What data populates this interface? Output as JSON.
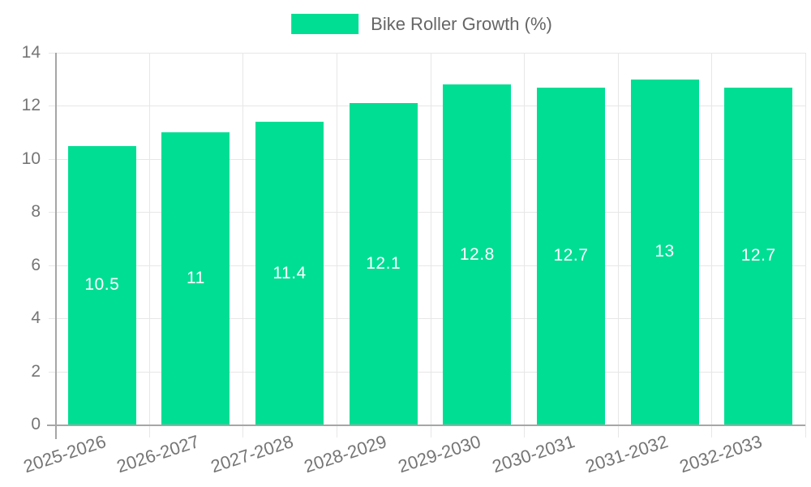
{
  "chart_data": {
    "type": "bar",
    "title": "",
    "legend_label": "Bike Roller Growth (%)",
    "legend_position": "top",
    "categories": [
      "2025-2026",
      "2026-2027",
      "2027-2028",
      "2028-2029",
      "2029-2030",
      "2030-2031",
      "2031-2032",
      "2032-2033"
    ],
    "series": [
      {
        "name": "Bike Roller Growth (%)",
        "values": [
          10.5,
          11,
          11.4,
          12.1,
          12.8,
          12.7,
          13,
          12.7
        ]
      }
    ],
    "xlabel": "",
    "ylabel": "",
    "ylim": [
      0,
      14
    ],
    "yticks": [
      0,
      2,
      4,
      6,
      8,
      10,
      12,
      14
    ],
    "grid": true,
    "bar_value_labels": true,
    "colors": {
      "bar": "#00de94",
      "value_label": "#ffffff",
      "grid": "#e7e7e7",
      "axis": "#a6a6a6",
      "tick_label": "#757575",
      "legend_label": "#666666",
      "background": "#ffffff"
    }
  }
}
